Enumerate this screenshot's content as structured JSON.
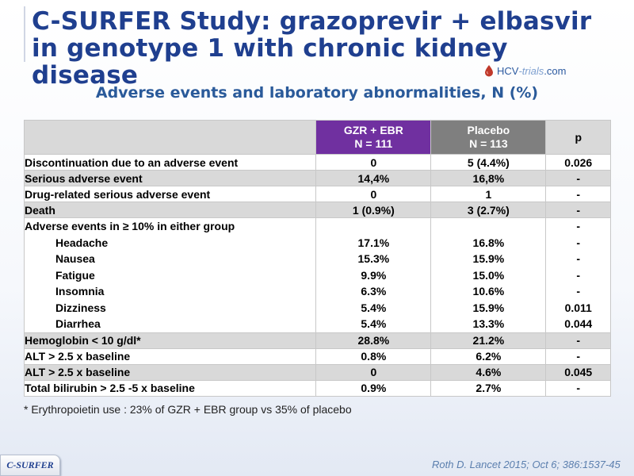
{
  "title": {
    "line1": "C-SURFER Study: grazoprevir + elbasvir",
    "line2": "in genotype 1 with chronic kidney disease"
  },
  "logo": {
    "text_hcv": "HCV",
    "text_trials": "-trials",
    "text_com": ".com"
  },
  "subtitle": "Adverse events and laboratory abnormalities, N (%)",
  "table": {
    "headers": {
      "grz_line1": "GZR + EBR",
      "grz_line2": "N = 111",
      "placebo_line1": "Placebo",
      "placebo_line2": "N = 113",
      "p": "p"
    },
    "rows": [
      {
        "label": "Discontinuation due to an adverse event",
        "grz": "0",
        "placebo": "5 (4.4%)",
        "p": "0.026"
      },
      {
        "label": "Serious adverse event",
        "grz": "14,4%",
        "placebo": "16,8%",
        "p": "-"
      },
      {
        "label": "Drug-related serious adverse event",
        "grz": "0",
        "placebo": "1",
        "p": "-"
      },
      {
        "label": "Death",
        "grz": "1 (0.9%)",
        "placebo": "3 (2.7%)",
        "p": "-"
      }
    ],
    "ae_group": {
      "label": "Adverse events in ≥ 10% in either group",
      "group_p": "-",
      "items": [
        {
          "label": "Headache",
          "grz": "17.1%",
          "placebo": "16.8%",
          "p": "-"
        },
        {
          "label": "Nausea",
          "grz": "15.3%",
          "placebo": "15.9%",
          "p": "-"
        },
        {
          "label": "Fatigue",
          "grz": "9.9%",
          "placebo": "15.0%",
          "p": "-"
        },
        {
          "label": "Insomnia",
          "grz": "6.3%",
          "placebo": "10.6%",
          "p": "-"
        },
        {
          "label": "Dizziness",
          "grz": "5.4%",
          "placebo": "15.9%",
          "p": "0.011"
        },
        {
          "label": "Diarrhea",
          "grz": "5.4%",
          "placebo": "13.3%",
          "p": "0.044"
        }
      ]
    },
    "lab_rows": [
      {
        "label": "Hemoglobin < 10 g/dl*",
        "grz": "28.8%",
        "placebo": "21.2%",
        "p": "-"
      },
      {
        "label": "ALT > 2.5 x baseline",
        "grz": "0.8%",
        "placebo": "6.2%",
        "p": "-"
      },
      {
        "label": "ALT > 2.5 x baseline",
        "grz": "0",
        "placebo": "4.6%",
        "p": "0.045"
      },
      {
        "label": "Total bilirubin > 2.5 -5 x baseline",
        "grz": "0.9%",
        "placebo": "2.7%",
        "p": "-"
      }
    ]
  },
  "footnote": "* Erythropoietin use : 23% of GZR + EBR group vs 35% of placebo",
  "reference": "Roth D. Lancet 2015; Oct 6; 386:1537-45",
  "badge": "C-SURFER",
  "colors": {
    "title": "#1f3f8f",
    "grz_header": "#7030a0",
    "placebo_header": "#7f7f7f",
    "shade": "#d9d9d9"
  }
}
